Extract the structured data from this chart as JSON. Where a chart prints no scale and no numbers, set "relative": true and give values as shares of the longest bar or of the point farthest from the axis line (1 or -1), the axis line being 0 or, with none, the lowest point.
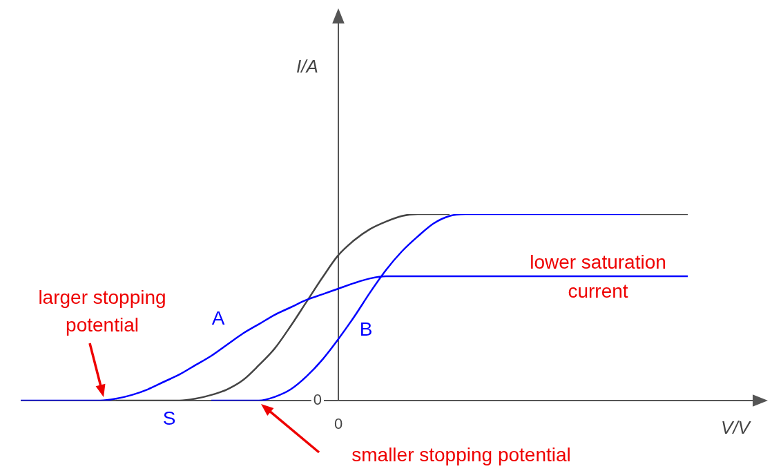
{
  "chart_data": {
    "type": "line",
    "relative": true,
    "xlabel": "V/V",
    "categories": [
      null,
      null,
      null,
      null,
      null,
      null,
      null,
      null,
      null,
      null,
      null,
      null,
      null,
      null,
      null,
      null,
      null,
      null,
      null,
      null,
      null,
      null,
      null,
      null,
      null,
      null,
      null,
      null,
      null,
      null,
      null,
      null,
      null,
      null,
      null,
      null,
      null,
      null,
      null,
      null,
      null,
      null,
      null
    ],
    "series": [
      {
        "color": "#444444",
        "values": [
          null,
          null,
          null,
          null,
          null,
          null,
          0,
          0,
          0,
          0,
          0,
          0.01,
          0.03,
          0.06,
          0.11,
          0.19,
          0.28,
          0.4,
          0.53,
          0.66,
          0.78,
          0.86,
          0.92,
          0.96,
          0.99,
          1,
          1,
          1,
          null,
          null,
          null,
          null,
          null,
          null,
          null,
          null,
          null,
          null,
          null,
          1,
          1,
          1,
          1
        ]
      },
      {
        "name": "A",
        "color": "#0000ff",
        "values": [
          0,
          0,
          0,
          0,
          0,
          0,
          0.01,
          0.03,
          0.06,
          0.1,
          0.14,
          0.19,
          0.24,
          0.3,
          0.36,
          0.41,
          0.46,
          0.5,
          0.54,
          0.57,
          0.6,
          0.63,
          0.655,
          0.667,
          0.667,
          0.667,
          0.667,
          0.667,
          0.667,
          0.667,
          0.667,
          0.667,
          0.667,
          0.667,
          0.667,
          0.667,
          0.667,
          0.667,
          0.667,
          0.667,
          0.667,
          0.667,
          0.667
        ]
      },
      {
        "name": "B",
        "color": "#0000ff",
        "values": [
          null,
          null,
          null,
          null,
          null,
          null,
          null,
          null,
          null,
          null,
          null,
          null,
          0,
          0,
          0,
          0,
          0.02,
          0.06,
          0.13,
          0.22,
          0.33,
          0.45,
          0.58,
          0.7,
          0.8,
          0.88,
          0.95,
          0.99,
          1,
          1,
          1,
          1,
          1,
          1,
          1,
          1,
          1,
          1,
          1,
          1,
          null,
          null,
          null
        ]
      }
    ],
    "annotations": [
      "I/A",
      "0",
      "0",
      "S",
      "larger stopping potential",
      "smaller stopping potential",
      "lower saturation current"
    ],
    "legend": false,
    "marker": "none",
    "line_style": "solid"
  }
}
